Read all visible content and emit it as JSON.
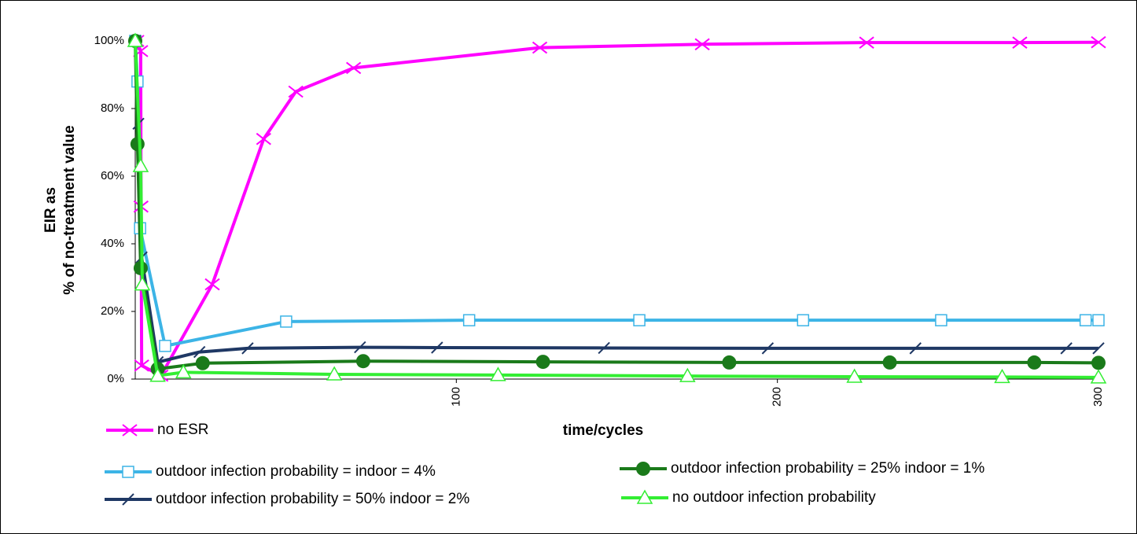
{
  "chart_data": {
    "type": "line",
    "xlabel": "time/cycles",
    "ylabel": [
      "EIR as",
      "% of no-treatment value"
    ],
    "xlim": [
      0,
      300
    ],
    "xticks": [
      100,
      200,
      300
    ],
    "ylim": [
      0,
      100
    ],
    "yticks": [
      {
        "value": 0,
        "label": "0%"
      },
      {
        "value": 20,
        "label": "20%"
      },
      {
        "value": 40,
        "label": "40%"
      },
      {
        "value": 60,
        "label": "60%"
      },
      {
        "value": 80,
        "label": "80%"
      },
      {
        "value": 100,
        "label": "100%"
      }
    ],
    "grid": false,
    "series": [
      {
        "name": "no ESR",
        "color": "#ff00ff",
        "marker": "x",
        "x": [
          0.5,
          1.7,
          1.8,
          2,
          8,
          24,
          40,
          50,
          68,
          126,
          176.6,
          227.8,
          275.5,
          300
        ],
        "values": [
          100,
          97,
          51,
          4,
          1,
          28,
          71,
          85,
          92,
          98,
          99,
          99.5,
          99.5,
          99.6
        ]
      },
      {
        "name": "outdoor infection probability = indoor = 4%",
        "color": "#3cb4e6",
        "marker": "square",
        "x": [
          0,
          0.7,
          1.5,
          9.3,
          47,
          104,
          157,
          208,
          251,
          296,
          300
        ],
        "values": [
          100,
          88,
          44.6,
          9.8,
          17,
          17.4,
          17.4,
          17.4,
          17.4,
          17.4,
          17.4
        ]
      },
      {
        "name": "outdoor infection probability = 50% indoor = 2%",
        "color": "#1f3864",
        "marker": "slash",
        "x": [
          0,
          1,
          2,
          7,
          20,
          35,
          70,
          94,
          146,
          197,
          243,
          290,
          300
        ],
        "values": [
          100,
          75.5,
          36,
          5,
          8,
          9.1,
          9.4,
          9.3,
          9.2,
          9.1,
          9.1,
          9.1,
          9.1
        ]
      },
      {
        "name": "outdoor infection probability = 25% indoor = 1%",
        "color": "#1a7a1a",
        "marker": "circle",
        "x": [
          0,
          0.7,
          1.7,
          7,
          21,
          71,
          127,
          185,
          235,
          280,
          300
        ],
        "values": [
          100,
          69.5,
          32.8,
          3,
          4.7,
          5.3,
          5.1,
          4.9,
          4.9,
          4.9,
          4.8
        ]
      },
      {
        "name": "no outdoor infection probability",
        "color": "#33ee33",
        "marker": "triangle",
        "x": [
          0,
          1.7,
          2.2,
          7,
          15,
          62,
          113,
          172,
          224,
          270,
          300
        ],
        "values": [
          100,
          63,
          28,
          1,
          2,
          1.4,
          1.2,
          0.9,
          0.7,
          0.6,
          0.5
        ]
      }
    ]
  }
}
